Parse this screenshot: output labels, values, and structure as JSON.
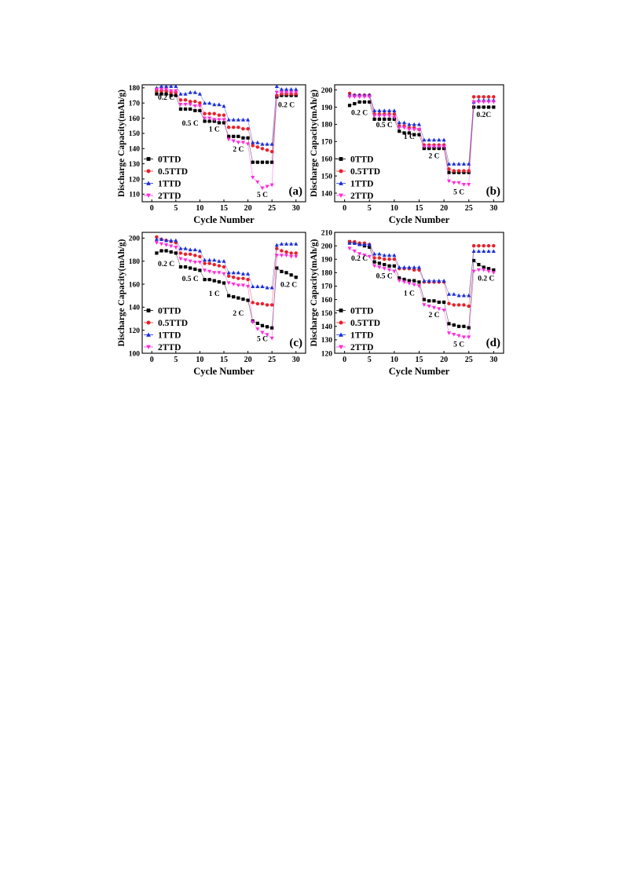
{
  "chart_data": [
    {
      "type": "scatter",
      "panel_label": "(a)",
      "xlabel": "Cycle Number",
      "ylabel": "Discharge Capacity(mAh/g)",
      "xlim": [
        -2,
        32
      ],
      "ylim": [
        105,
        182
      ],
      "xticks": [
        0,
        5,
        10,
        15,
        20,
        25,
        30
      ],
      "yticks": [
        110,
        120,
        130,
        140,
        150,
        160,
        170,
        180
      ],
      "legend_position": "bottom-left",
      "rate_labels": [
        {
          "text": "0.2 C",
          "x": 3,
          "y": 174
        },
        {
          "text": "0.5 C",
          "x": 8,
          "y": 157
        },
        {
          "text": "1 C",
          "x": 13,
          "y": 153
        },
        {
          "text": "2 C",
          "x": 18,
          "y": 140
        },
        {
          "text": "5 C",
          "x": 23,
          "y": 110
        },
        {
          "text": "0.2 C",
          "x": 28,
          "y": 169
        }
      ],
      "series": [
        {
          "name": "0TTD",
          "color": "#000000",
          "marker": "square",
          "values": [
            176,
            176,
            176,
            175,
            175,
            166,
            166,
            166,
            165,
            165,
            158,
            158,
            158,
            157,
            157,
            148,
            148,
            148,
            147,
            147,
            131,
            131,
            131,
            131,
            131,
            174,
            175,
            175,
            175,
            175
          ]
        },
        {
          "name": "0.5TTD",
          "color": "#e8202a",
          "marker": "circle",
          "values": [
            178,
            178,
            178,
            177,
            177,
            172,
            172,
            171,
            171,
            170,
            163,
            163,
            163,
            162,
            162,
            154,
            154,
            154,
            153,
            153,
            142,
            141,
            140,
            139,
            138,
            175,
            176,
            176,
            176,
            176
          ]
        },
        {
          "name": "1TTD",
          "color": "#1a2fd6",
          "marker": "triangle-up",
          "values": [
            180,
            181,
            181,
            181,
            181,
            176,
            176,
            177,
            177,
            176,
            170,
            170,
            169,
            169,
            168,
            159,
            159,
            159,
            159,
            159,
            144,
            144,
            143,
            143,
            143,
            181,
            179,
            179,
            179,
            179
          ]
        },
        {
          "name": "2TTD",
          "color": "#ff2bd9",
          "marker": "triangle-down",
          "values": [
            179,
            179,
            179,
            178,
            178,
            169,
            169,
            169,
            168,
            168,
            160,
            160,
            159,
            159,
            159,
            146,
            145,
            144,
            144,
            143,
            121,
            118,
            114,
            115,
            116,
            177,
            177,
            177,
            177,
            177
          ]
        }
      ]
    },
    {
      "type": "scatter",
      "panel_label": "(b)",
      "xlabel": "Cycle Number",
      "ylabel": "Discharge Capacity(mAh/g)",
      "xlim": [
        -2,
        32
      ],
      "ylim": [
        135,
        203
      ],
      "xticks": [
        0,
        5,
        10,
        15,
        20,
        25,
        30
      ],
      "yticks": [
        140,
        150,
        160,
        170,
        180,
        190,
        200
      ],
      "legend_position": "bottom-left",
      "rate_labels": [
        {
          "text": "0.2 C",
          "x": 3,
          "y": 187
        },
        {
          "text": "0.5 C",
          "x": 8,
          "y": 180
        },
        {
          "text": "1 C",
          "x": 13,
          "y": 173
        },
        {
          "text": "2 C",
          "x": 18,
          "y": 162
        },
        {
          "text": "5 C",
          "x": 23,
          "y": 141
        },
        {
          "text": "0.2C",
          "x": 28,
          "y": 186
        }
      ],
      "series": [
        {
          "name": "0TTD",
          "color": "#000000",
          "marker": "square",
          "values": [
            191,
            192,
            193,
            193,
            193,
            183,
            183,
            183,
            183,
            183,
            176,
            175,
            175,
            174,
            174,
            166,
            166,
            166,
            166,
            166,
            152,
            152,
            152,
            152,
            152,
            190,
            190,
            190,
            190,
            190
          ]
        },
        {
          "name": "0.5TTD",
          "color": "#e8202a",
          "marker": "circle",
          "values": [
            198,
            197,
            197,
            197,
            197,
            186,
            186,
            186,
            186,
            186,
            179,
            179,
            178,
            178,
            177,
            168,
            168,
            168,
            168,
            168,
            154,
            153,
            153,
            153,
            153,
            196,
            196,
            196,
            196,
            196
          ]
        },
        {
          "name": "1TTD",
          "color": "#1a2fd6",
          "marker": "triangle-up",
          "values": [
            197,
            197,
            197,
            197,
            197,
            188,
            188,
            188,
            188,
            188,
            181,
            181,
            180,
            180,
            180,
            171,
            171,
            171,
            171,
            171,
            157,
            157,
            157,
            157,
            157,
            193,
            194,
            194,
            194,
            194
          ]
        },
        {
          "name": "2TTD",
          "color": "#ff2bd9",
          "marker": "triangle-down",
          "values": [
            196,
            196,
            196,
            196,
            196,
            185,
            185,
            185,
            185,
            184,
            178,
            178,
            177,
            177,
            177,
            167,
            167,
            167,
            167,
            167,
            147,
            146,
            146,
            145,
            145,
            193,
            193,
            193,
            193,
            193
          ]
        }
      ]
    },
    {
      "type": "scatter",
      "panel_label": "(c)",
      "xlabel": "Cycle Number",
      "ylabel": "Discharge Capacity(mAh/g)",
      "xlim": [
        -2,
        32
      ],
      "ylim": [
        100,
        205
      ],
      "xticks": [
        0,
        5,
        10,
        15,
        20,
        25,
        30
      ],
      "yticks": [
        100,
        120,
        140,
        160,
        180,
        200
      ],
      "legend_position": "bottom-left",
      "rate_labels": [
        {
          "text": "0.2 C",
          "x": 3,
          "y": 178
        },
        {
          "text": "0.5 C",
          "x": 8,
          "y": 165
        },
        {
          "text": "1 C",
          "x": 13,
          "y": 152
        },
        {
          "text": "2 C",
          "x": 18,
          "y": 135
        },
        {
          "text": "5 C",
          "x": 23,
          "y": 113
        },
        {
          "text": "0.2 C",
          "x": 28.5,
          "y": 160
        }
      ],
      "series": [
        {
          "name": "0TTD",
          "color": "#000000",
          "marker": "square",
          "values": [
            187,
            189,
            189,
            188,
            187,
            175,
            175,
            174,
            173,
            172,
            164,
            164,
            163,
            162,
            161,
            150,
            149,
            148,
            147,
            146,
            128,
            126,
            124,
            123,
            122,
            174,
            171,
            170,
            168,
            166
          ]
        },
        {
          "name": "0.5TTD",
          "color": "#e8202a",
          "marker": "circle",
          "values": [
            201,
            199,
            198,
            197,
            196,
            187,
            186,
            186,
            185,
            184,
            178,
            178,
            177,
            176,
            175,
            167,
            166,
            165,
            165,
            164,
            144,
            143,
            143,
            142,
            142,
            191,
            189,
            188,
            187,
            187
          ]
        },
        {
          "name": "1TTD",
          "color": "#1a2fd6",
          "marker": "triangle-up",
          "values": [
            199,
            199,
            198,
            198,
            198,
            191,
            191,
            190,
            190,
            189,
            181,
            181,
            181,
            180,
            180,
            170,
            170,
            170,
            169,
            169,
            158,
            158,
            158,
            157,
            157,
            194,
            195,
            195,
            195,
            195
          ]
        },
        {
          "name": "2TTD",
          "color": "#ff2bd9",
          "marker": "triangle-down",
          "values": [
            196,
            195,
            194,
            193,
            192,
            182,
            181,
            180,
            179,
            179,
            172,
            171,
            170,
            170,
            169,
            161,
            160,
            159,
            159,
            158,
            127,
            121,
            118,
            116,
            113,
            185,
            185,
            185,
            184,
            184
          ]
        }
      ]
    },
    {
      "type": "scatter",
      "panel_label": "(d)",
      "xlabel": "Cycle Number",
      "ylabel": "Discharge Capacity(mAh/g)",
      "xlim": [
        -2,
        32
      ],
      "ylim": [
        120,
        210
      ],
      "xticks": [
        0,
        5,
        10,
        15,
        20,
        25,
        30
      ],
      "yticks": [
        120,
        130,
        140,
        150,
        160,
        170,
        180,
        190,
        200,
        210
      ],
      "legend_position": "bottom-left",
      "rate_labels": [
        {
          "text": "0.2 C",
          "x": 3,
          "y": 191
        },
        {
          "text": "0.5 C",
          "x": 8,
          "y": 178
        },
        {
          "text": "1 C",
          "x": 13,
          "y": 165
        },
        {
          "text": "2 C",
          "x": 18,
          "y": 149
        },
        {
          "text": "5 C",
          "x": 23,
          "y": 127
        },
        {
          "text": "0.2 C",
          "x": 28.5,
          "y": 176
        }
      ],
      "series": [
        {
          "name": "0TTD",
          "color": "#000000",
          "marker": "square",
          "values": [
            203,
            202,
            201,
            200,
            199,
            188,
            187,
            186,
            185,
            185,
            176,
            175,
            174,
            174,
            173,
            160,
            159,
            159,
            158,
            158,
            142,
            141,
            140,
            140,
            139,
            189,
            186,
            184,
            183,
            182
          ]
        },
        {
          "name": "0.5TTD",
          "color": "#e8202a",
          "marker": "circle",
          "values": [
            203,
            203,
            202,
            202,
            201,
            191,
            191,
            190,
            190,
            190,
            183,
            183,
            183,
            182,
            182,
            173,
            173,
            173,
            173,
            173,
            157,
            156,
            156,
            156,
            155,
            200,
            200,
            200,
            200,
            200
          ]
        },
        {
          "name": "1TTD",
          "color": "#1a2fd6",
          "marker": "triangle-up",
          "values": [
            202,
            202,
            201,
            201,
            201,
            194,
            194,
            193,
            193,
            193,
            184,
            184,
            184,
            184,
            184,
            174,
            174,
            174,
            174,
            174,
            164,
            164,
            163,
            163,
            163,
            196,
            196,
            196,
            196,
            196
          ]
        },
        {
          "name": "2TTD",
          "color": "#ff2bd9",
          "marker": "triangle-down",
          "values": [
            198,
            196,
            194,
            193,
            192,
            185,
            184,
            183,
            182,
            181,
            174,
            173,
            172,
            171,
            170,
            156,
            155,
            154,
            153,
            152,
            135,
            134,
            133,
            132,
            132,
            181,
            182,
            182,
            181,
            180
          ]
        }
      ]
    }
  ]
}
